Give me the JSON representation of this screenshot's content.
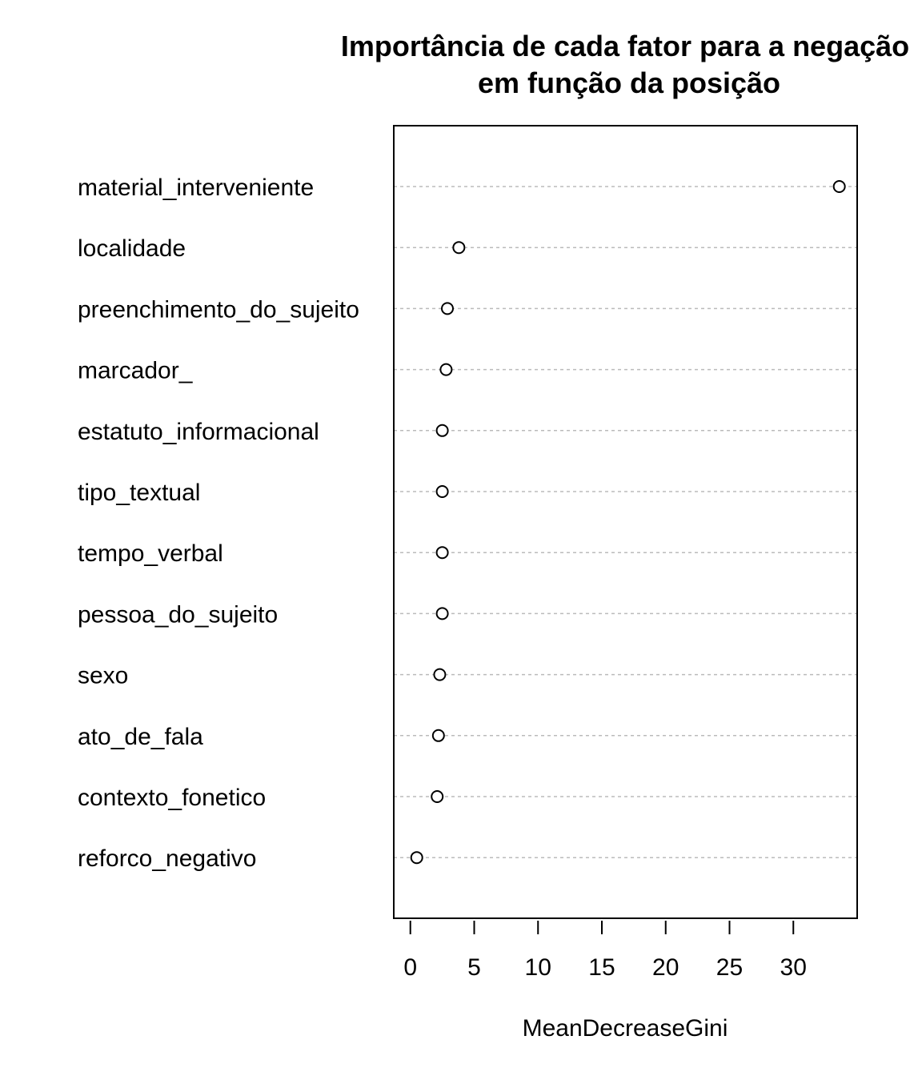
{
  "chart_data": {
    "type": "scatter",
    "title_line1": "Importância de cada fator para a negação",
    "title_line2": "em função da posição",
    "xlabel": "MeanDecreaseGini",
    "ylabel": "",
    "xlim": [
      -1.3,
      35
    ],
    "xticks": [
      0,
      5,
      10,
      15,
      20,
      25,
      30
    ],
    "xtick_labels": [
      "0",
      "5",
      "10",
      "15",
      "20",
      "25",
      "30"
    ],
    "grid": "dotted horizontal guide per category",
    "categories": [
      "material_interveniente",
      "localidade",
      "preenchimento_do_sujeito",
      "marcador_",
      "estatuto_informacional",
      "tipo_textual",
      "tempo_verbal",
      "pessoa_do_sujeito",
      "sexo",
      "ato_de_fala",
      "contexto_fonetico",
      "reforco_negativo"
    ],
    "values": [
      33.6,
      3.8,
      2.9,
      2.8,
      2.5,
      2.5,
      2.5,
      2.5,
      2.3,
      2.2,
      2.1,
      0.5
    ],
    "colors": {
      "marker": "#000000",
      "guide": "#bbbbbb",
      "frame": "#000000"
    }
  }
}
